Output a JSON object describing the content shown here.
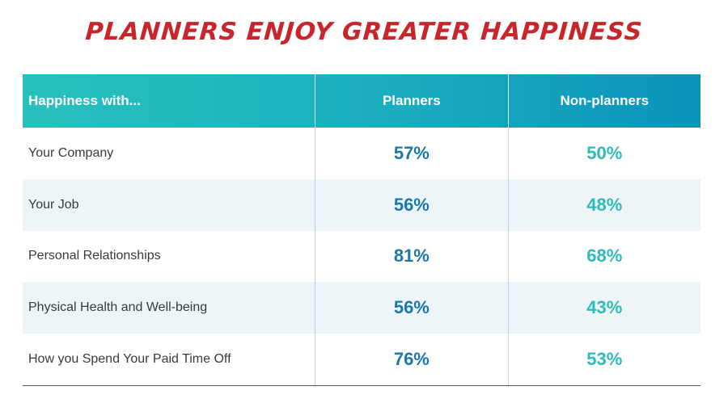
{
  "title": "PLANNERS ENJOY GREATER HAPPINESS",
  "colors": {
    "title": "#c8262b",
    "header_start": "#27c1bd",
    "header_end": "#0b93ba",
    "planners": "#1a79a8",
    "non_planners": "#2dbbb8"
  },
  "chart_data": {
    "type": "table",
    "title": "PLANNERS ENJOY GREATER HAPPINESS",
    "columns": [
      "Happiness with...",
      "Planners",
      "Non-planners"
    ],
    "rows": [
      [
        "Your Company",
        "57%",
        "50%"
      ],
      [
        "Your Job",
        "56%",
        "48%"
      ],
      [
        "Personal Relationships",
        "81%",
        "68%"
      ],
      [
        "Physical Health and Well-being",
        "56%",
        "43%"
      ],
      [
        "How you Spend Your Paid Time Off",
        "76%",
        "53%"
      ]
    ]
  }
}
